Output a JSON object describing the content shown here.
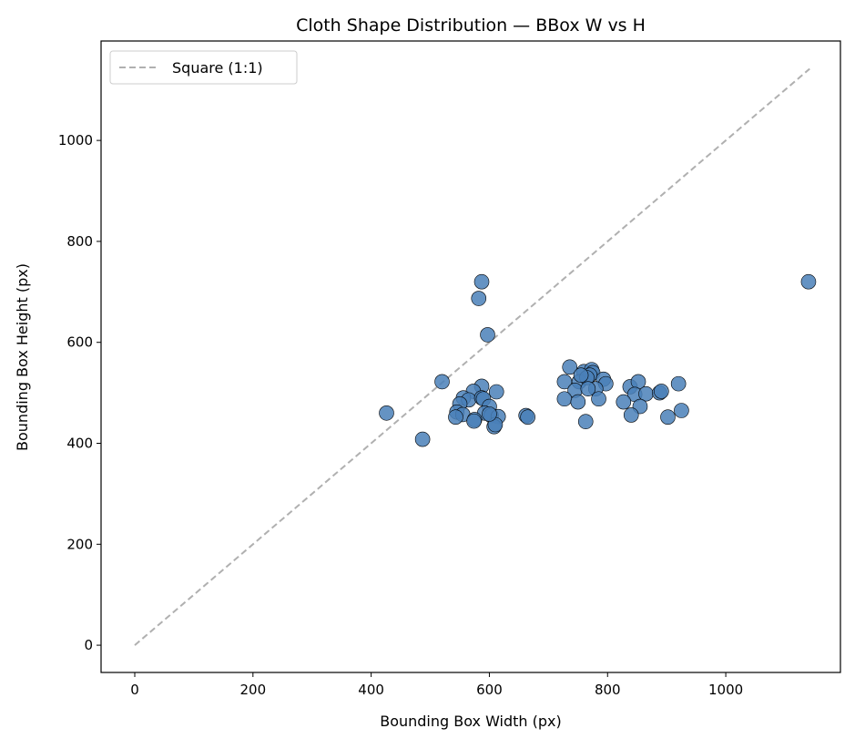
{
  "chart_data": {
    "type": "scatter",
    "title": "Cloth Shape Distribution — BBox W vs H",
    "xlabel": "Bounding Box Width (px)",
    "ylabel": "Bounding Box Height (px)",
    "xlim": [
      -57,
      1194
    ],
    "ylim": [
      -54,
      1197
    ],
    "xticks": [
      0,
      200,
      400,
      600,
      800,
      1000
    ],
    "yticks": [
      0,
      200,
      400,
      600,
      800,
      1000
    ],
    "grid": false,
    "legend": {
      "placement": "top-left",
      "entries": [
        "Square (1:1)"
      ]
    },
    "reference_line": {
      "name": "Square (1:1)",
      "from": [
        0,
        0
      ],
      "to": [
        1142,
        1142
      ],
      "style": "dashed",
      "color": "#b0b0b0"
    },
    "marker_color": "#4a80b8",
    "points": [
      [
        1140,
        720
      ],
      [
        587,
        720
      ],
      [
        582,
        687
      ],
      [
        597,
        615
      ],
      [
        520,
        522
      ],
      [
        426,
        460
      ],
      [
        487,
        408
      ],
      [
        587,
        513
      ],
      [
        573,
        503
      ],
      [
        612,
        502
      ],
      [
        556,
        490
      ],
      [
        565,
        486
      ],
      [
        587,
        490
      ],
      [
        590,
        488
      ],
      [
        550,
        478
      ],
      [
        600,
        473
      ],
      [
        545,
        462
      ],
      [
        555,
        457
      ],
      [
        543,
        452
      ],
      [
        592,
        460
      ],
      [
        603,
        455
      ],
      [
        615,
        453
      ],
      [
        575,
        447
      ],
      [
        574,
        444
      ],
      [
        608,
        433
      ],
      [
        610,
        437
      ],
      [
        600,
        458
      ],
      [
        662,
        455
      ],
      [
        665,
        452
      ],
      [
        736,
        551
      ],
      [
        760,
        542
      ],
      [
        773,
        546
      ],
      [
        775,
        540
      ],
      [
        770,
        535
      ],
      [
        793,
        527
      ],
      [
        797,
        518
      ],
      [
        727,
        522
      ],
      [
        752,
        522
      ],
      [
        765,
        530
      ],
      [
        780,
        508
      ],
      [
        745,
        505
      ],
      [
        767,
        508
      ],
      [
        727,
        488
      ],
      [
        750,
        482
      ],
      [
        785,
        488
      ],
      [
        763,
        443
      ],
      [
        755,
        535
      ],
      [
        838,
        512
      ],
      [
        852,
        522
      ],
      [
        846,
        497
      ],
      [
        865,
        498
      ],
      [
        827,
        482
      ],
      [
        855,
        473
      ],
      [
        840,
        456
      ],
      [
        888,
        500
      ],
      [
        891,
        503
      ],
      [
        920,
        518
      ],
      [
        925,
        465
      ],
      [
        902,
        452
      ]
    ]
  }
}
